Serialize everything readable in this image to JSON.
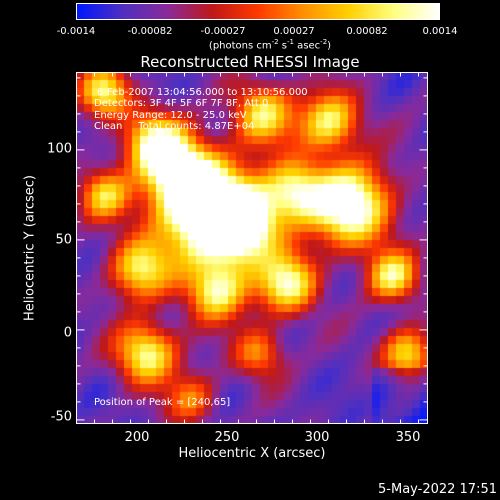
{
  "colorbar": {
    "tick_labels": [
      "-0.0014",
      "-0.00082",
      "-0.00027",
      "0.00027",
      "0.00082",
      "0.0014"
    ],
    "tick_values": [
      -0.0014,
      -0.00082,
      -0.00027,
      0.00027,
      0.00082,
      0.0014
    ],
    "range": [
      -0.0014,
      0.0014
    ],
    "units_prefix": "(photons cm",
    "units_exp1": "-2",
    "units_mid1": " s",
    "units_exp2": "-1",
    "units_mid2": " asec",
    "units_exp3": "-2",
    "units_suffix": ")",
    "colors": [
      "#0018ff",
      "#5030c0",
      "#8a2a9a",
      "#c01818",
      "#ff3a00",
      "#ff9000",
      "#ffd000",
      "#ffff80",
      "#ffffff"
    ]
  },
  "chart_data": {
    "type": "heatmap",
    "title": "Reconstructed RHESSI Image",
    "xlabel": "Heliocentric X (arcsec)",
    "ylabel": "Heliocentric Y (arcsec)",
    "xlim": [
      165,
      360
    ],
    "ylim": [
      -52,
      143
    ],
    "xtick_values": [
      200,
      250,
      300,
      350
    ],
    "xtick_labels": [
      "200",
      "250",
      "300",
      "350"
    ],
    "ytick_values": [
      -50,
      0,
      50,
      100
    ],
    "ytick_labels": [
      "-50",
      "0",
      "50",
      "100"
    ],
    "peak": [
      240,
      65
    ],
    "annotations": [
      "6-Feb-2007 13:04:56.000 to 13:10:56.000",
      "Detectors: 3F 4F 5F 6F 7F 8F, Att 0",
      "Energy Range: 12.0 - 25.0 keV",
      "Clean     Total counts: 4.87E+04"
    ],
    "peak_text": "Position of Peak = [240,65]"
  },
  "footer": {
    "date": "5-May-2022 17:51"
  }
}
